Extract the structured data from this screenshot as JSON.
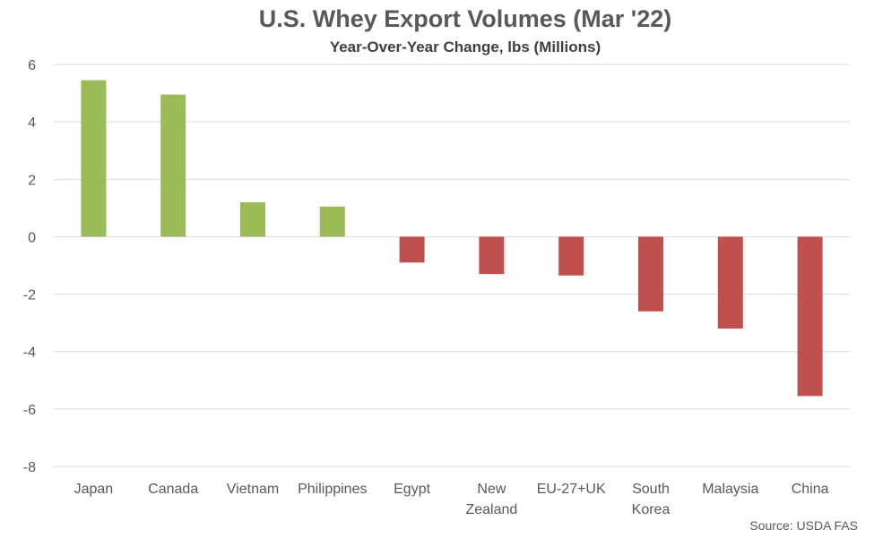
{
  "chart_data": {
    "type": "bar",
    "title": "U.S. Whey Export Volumes (Mar '22)",
    "subtitle": "Year-Over-Year Change, lbs (Millions)",
    "categories": [
      "Japan",
      "Canada",
      "Vietnam",
      "Philippines",
      "Egypt",
      "New Zealand",
      "EU-27+UK",
      "South Korea",
      "Malaysia",
      "China"
    ],
    "values": [
      5.45,
      4.95,
      1.2,
      1.05,
      -0.9,
      -1.3,
      -1.35,
      -2.6,
      -3.2,
      -5.55
    ],
    "ylim": [
      -8,
      6
    ],
    "yticks": [
      6,
      4,
      2,
      0,
      -2,
      -4,
      -6,
      -8
    ],
    "grid": true,
    "colors": {
      "positive": "#9bbb59",
      "negative": "#c0504d",
      "grid": "#d9d9d9"
    },
    "source": "Source: USDA FAS"
  }
}
